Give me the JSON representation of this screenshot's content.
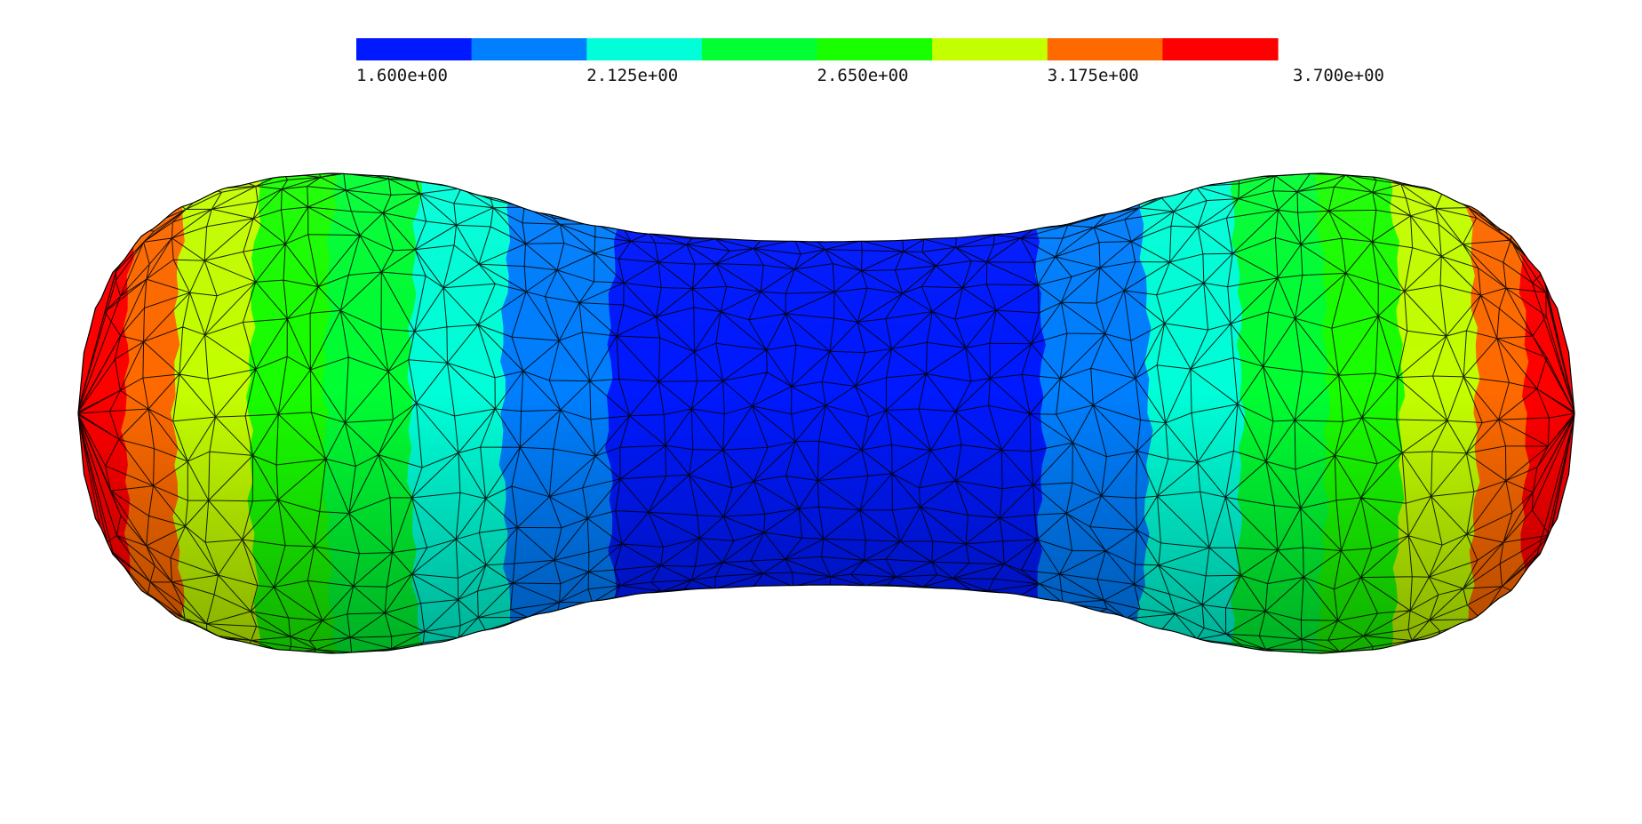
{
  "legend": {
    "min": 1.6,
    "max": 3.7,
    "bins": [
      {
        "from": 1.6,
        "to": 1.8625,
        "color": "#0019ff"
      },
      {
        "from": 1.8625,
        "to": 2.125,
        "color": "#007fff"
      },
      {
        "from": 2.125,
        "to": 2.3875,
        "color": "#00ffd9"
      },
      {
        "from": 2.3875,
        "to": 2.65,
        "color": "#00ff33"
      },
      {
        "from": 2.65,
        "to": 2.9125,
        "color": "#19ff00"
      },
      {
        "from": 2.9125,
        "to": 3.175,
        "color": "#c4ff00"
      },
      {
        "from": 3.175,
        "to": 3.4375,
        "color": "#ff6a00"
      },
      {
        "from": 3.4375,
        "to": 3.7,
        "color": "#ff0000"
      }
    ],
    "ticks": [
      {
        "value": 1.6,
        "label": "1.600e+00"
      },
      {
        "value": 2.125,
        "label": "2.125e+00"
      },
      {
        "value": 2.65,
        "label": "2.650e+00"
      },
      {
        "value": 3.175,
        "label": "3.175e+00"
      },
      {
        "value": 3.7,
        "label": "3.700e+00"
      }
    ]
  },
  "mesh": {
    "mesh_line_color": "#000000",
    "band_order_left_to_right": [
      7,
      6,
      5,
      4,
      3,
      2,
      1,
      0,
      0,
      1,
      2,
      3,
      4,
      5,
      6,
      7
    ]
  }
}
